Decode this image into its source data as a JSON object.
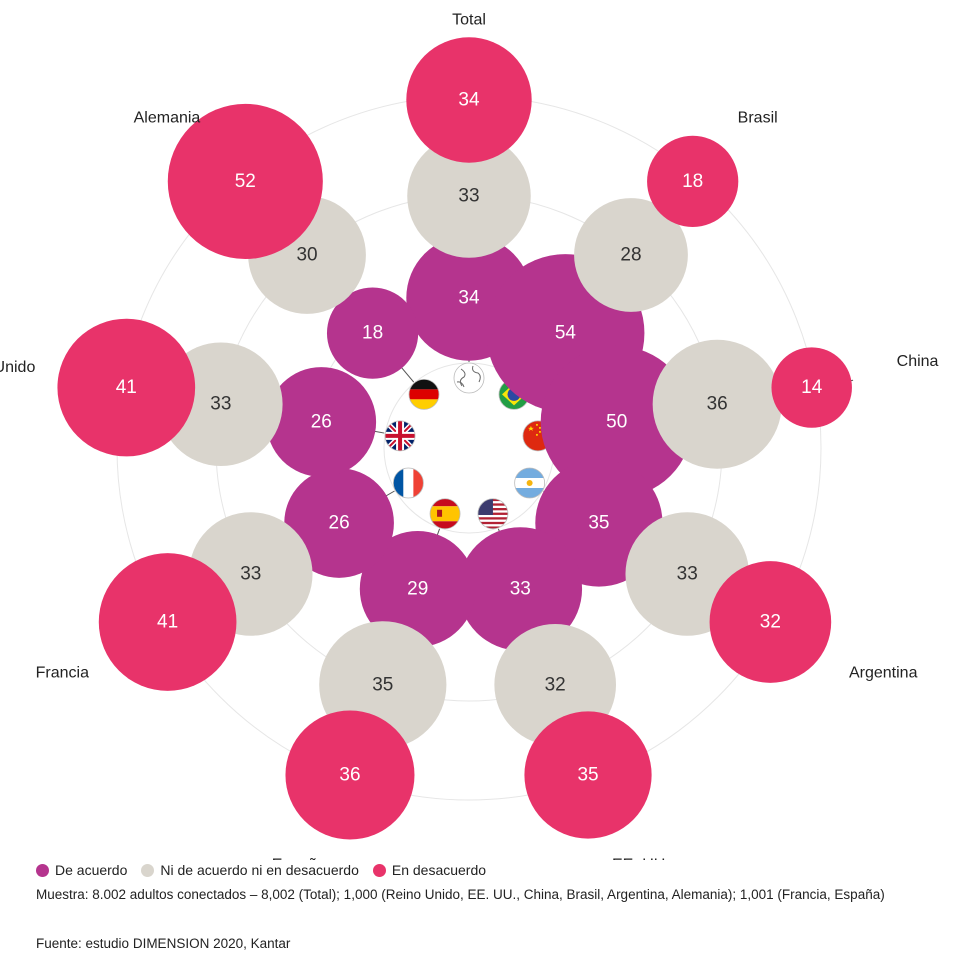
{
  "colors": {
    "agree": "#b5348e",
    "neutral": "#d9d5cd",
    "disagree": "#e8336a",
    "ring": "#e6e6e6"
  },
  "legend": [
    {
      "label": "De acuerdo",
      "key": "agree"
    },
    {
      "label": "Ni de acuerdo ni en desacuerdo",
      "key": "neutral"
    },
    {
      "label": "En desacuerdo",
      "key": "disagree"
    }
  ],
  "notes": {
    "sample": "Muestra: 8.002 adultos conectados – 8,002 (Total); 1,000 (Reino Unido, EE. UU., China, Brasil, Argentina, Alemania); 1,001 (Francia, España)",
    "source": "Fuente: estudio DIMENSION 2020, Kantar"
  },
  "chart_data": {
    "type": "radial-bubble",
    "series": [
      {
        "name": "De acuerdo",
        "key": "agree"
      },
      {
        "name": "Ni de acuerdo ni en desacuerdo",
        "key": "neutral"
      },
      {
        "name": "En desacuerdo",
        "key": "disagree"
      }
    ],
    "categories": [
      {
        "label": "Total",
        "icon": "globe-icon",
        "agree": 34,
        "neutral": 33,
        "disagree": 34
      },
      {
        "label": "Brasil",
        "icon": "brazil-flag-icon",
        "agree": 54,
        "neutral": 28,
        "disagree": 18
      },
      {
        "label": "China",
        "icon": "china-flag-icon",
        "agree": 50,
        "neutral": 36,
        "disagree": 14
      },
      {
        "label": "Argentina",
        "icon": "argentina-flag-icon",
        "agree": 35,
        "neutral": 33,
        "disagree": 32
      },
      {
        "label": "EE. UU.",
        "icon": "usa-flag-icon",
        "agree": 33,
        "neutral": 32,
        "disagree": 35
      },
      {
        "label": "España",
        "icon": "spain-flag-icon",
        "agree": 29,
        "neutral": 35,
        "disagree": 36
      },
      {
        "label": "Francia",
        "icon": "france-flag-icon",
        "agree": 26,
        "neutral": 33,
        "disagree": 41
      },
      {
        "label": "Reino Unido",
        "icon": "uk-flag-icon",
        "agree": 26,
        "neutral": 33,
        "disagree": 41
      },
      {
        "label": "Alemania",
        "icon": "germany-flag-icon",
        "agree": 18,
        "neutral": 30,
        "disagree": 52
      }
    ]
  }
}
